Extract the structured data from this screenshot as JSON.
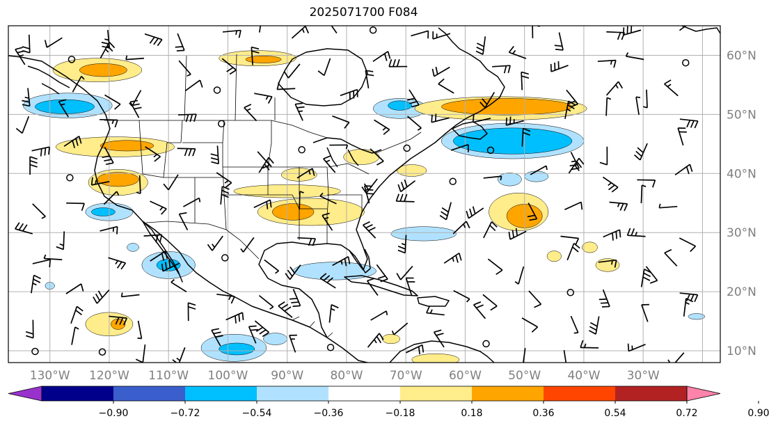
{
  "title": "2025071700 F084",
  "map": {
    "lon_range": [
      -137,
      -17
    ],
    "lat_range": [
      8,
      65
    ],
    "lat_labels": [
      {
        "lat": 60,
        "text": "60°N"
      },
      {
        "lat": 50,
        "text": "50°N"
      },
      {
        "lat": 40,
        "text": "40°N"
      },
      {
        "lat": 30,
        "text": "30°N"
      },
      {
        "lat": 20,
        "text": "20°N"
      },
      {
        "lat": 10,
        "text": "10°N"
      }
    ],
    "lon_labels": [
      {
        "lon": -130,
        "text": "130°W"
      },
      {
        "lon": -120,
        "text": "120°W"
      },
      {
        "lon": -110,
        "text": "110°W"
      },
      {
        "lon": -100,
        "text": "100°W"
      },
      {
        "lon": -90,
        "text": "90°W"
      },
      {
        "lon": -80,
        "text": "80°W"
      },
      {
        "lon": -70,
        "text": "70°W"
      },
      {
        "lon": -60,
        "text": "60°W"
      },
      {
        "lon": -50,
        "text": "50°W"
      },
      {
        "lon": -40,
        "text": "40°W"
      },
      {
        "lon": -30,
        "text": "30°W"
      }
    ],
    "grid_lons": [
      -130,
      -120,
      -110,
      -100,
      -90,
      -80,
      -70,
      -60,
      -50,
      -40,
      -30,
      -20
    ],
    "grid_lats": [
      10,
      20,
      30,
      40,
      50,
      60
    ]
  },
  "colorbar": {
    "colors": [
      "#9932cc",
      "#00008b",
      "#3a5fcd",
      "#00bfff",
      "#b0e2ff",
      "#ffffff",
      "#ffec8b",
      "#ffa500",
      "#ff4500",
      "#b22222",
      "#ff83aa"
    ],
    "ticks": [
      "−0.90",
      "−0.72",
      "−0.54",
      "−0.36",
      "−0.18",
      "0.18",
      "0.36",
      "0.54",
      "0.72",
      "0.90"
    ]
  },
  "features": {
    "ocean_patches": [
      {
        "level": "pos1",
        "color": "#ffec8b",
        "lon": -122,
        "lat": 57.5,
        "rx": 7.5,
        "ry": 2.0
      },
      {
        "level": "pos2",
        "color": "#ffa500",
        "lon": -121,
        "lat": 57.5,
        "rx": 4.0,
        "ry": 1.1
      },
      {
        "level": "pos1",
        "color": "#ffec8b",
        "lon": -95,
        "lat": 59.5,
        "rx": 6.5,
        "ry": 1.3
      },
      {
        "level": "pos2",
        "color": "#ffa500",
        "lon": -94,
        "lat": 59.3,
        "rx": 3.0,
        "ry": 0.6
      },
      {
        "level": "neg1",
        "color": "#b0e2ff",
        "lon": -127,
        "lat": 51.5,
        "rx": 7.5,
        "ry": 2.1
      },
      {
        "level": "neg2",
        "color": "#00bfff",
        "lon": -127.5,
        "lat": 51.3,
        "rx": 5.0,
        "ry": 1.2
      },
      {
        "level": "pos1",
        "color": "#ffec8b",
        "lon": -119,
        "lat": 44.5,
        "rx": 10.0,
        "ry": 1.7
      },
      {
        "level": "pos2",
        "color": "#ffa500",
        "lon": -117,
        "lat": 44.7,
        "rx": 4.5,
        "ry": 0.9
      },
      {
        "level": "pos1",
        "color": "#ffec8b",
        "lon": -118.5,
        "lat": 38.5,
        "rx": 5.0,
        "ry": 2.2
      },
      {
        "level": "pos2",
        "color": "#ffa500",
        "lon": -118.5,
        "lat": 39.0,
        "rx": 3.5,
        "ry": 1.2
      },
      {
        "level": "neg1",
        "color": "#b0e2ff",
        "lon": -120,
        "lat": 33.5,
        "rx": 4.0,
        "ry": 1.5
      },
      {
        "level": "neg2",
        "color": "#00bfff",
        "lon": -121,
        "lat": 33.5,
        "rx": 2.0,
        "ry": 0.7
      },
      {
        "level": "neg1",
        "color": "#b0e2ff",
        "lon": -110,
        "lat": 24.5,
        "rx": 4.5,
        "ry": 2.3
      },
      {
        "level": "neg2",
        "color": "#00bfff",
        "lon": -110,
        "lat": 24.5,
        "rx": 2.0,
        "ry": 1.0
      },
      {
        "level": "pos1",
        "color": "#ffec8b",
        "lon": -90,
        "lat": 37.0,
        "rx": 9.0,
        "ry": 1.1
      },
      {
        "level": "pos1",
        "color": "#ffec8b",
        "lon": -86,
        "lat": 33.5,
        "rx": 9.0,
        "ry": 2.3
      },
      {
        "level": "pos2",
        "color": "#ffa500",
        "lon": -89,
        "lat": 33.5,
        "rx": 3.5,
        "ry": 1.4
      },
      {
        "level": "pos1",
        "color": "#ffec8b",
        "lon": -88,
        "lat": 39.8,
        "rx": 3.0,
        "ry": 1.1
      },
      {
        "level": "pos1",
        "color": "#ffec8b",
        "lon": -77.5,
        "lat": 42.8,
        "rx": 3.0,
        "ry": 1.3
      },
      {
        "level": "pos1",
        "color": "#ffec8b",
        "lon": -69,
        "lat": 40.5,
        "rx": 2.5,
        "ry": 1.0
      },
      {
        "level": "neg1",
        "color": "#b0e2ff",
        "lon": -82,
        "lat": 23.5,
        "rx": 7.0,
        "ry": 1.5
      },
      {
        "level": "neg1",
        "color": "#b0e2ff",
        "lon": -67,
        "lat": 29.8,
        "rx": 5.5,
        "ry": 1.2
      },
      {
        "level": "neg1",
        "color": "#b0e2ff",
        "lon": -71,
        "lat": 51.0,
        "rx": 4.5,
        "ry": 1.7
      },
      {
        "level": "neg2",
        "color": "#00bfff",
        "lon": -71,
        "lat": 51.5,
        "rx": 2.0,
        "ry": 0.8
      },
      {
        "level": "pos1",
        "color": "#ffec8b",
        "lon": -54,
        "lat": 51.0,
        "rx": 14.5,
        "ry": 2.0
      },
      {
        "level": "pos2",
        "color": "#ffa500",
        "lon": -53,
        "lat": 51.3,
        "rx": 11.0,
        "ry": 1.4
      },
      {
        "level": "neg1",
        "color": "#b0e2ff",
        "lon": -52,
        "lat": 45.5,
        "rx": 12.0,
        "ry": 3.0
      },
      {
        "level": "neg2",
        "color": "#00bfff",
        "lon": -52,
        "lat": 45.5,
        "rx": 10.0,
        "ry": 2.2
      },
      {
        "level": "pos1",
        "color": "#ffec8b",
        "lon": -51,
        "lat": 33.5,
        "rx": 5.0,
        "ry": 3.2
      },
      {
        "level": "pos2",
        "color": "#ffa500",
        "lon": -50,
        "lat": 32.8,
        "rx": 3.0,
        "ry": 2.0
      },
      {
        "level": "neg1",
        "color": "#b0e2ff",
        "lon": -52.5,
        "lat": 39.0,
        "rx": 2.0,
        "ry": 1.1
      },
      {
        "level": "pos1",
        "color": "#ffec8b",
        "lon": -45,
        "lat": 26.0,
        "rx": 1.2,
        "ry": 0.9
      },
      {
        "level": "pos1",
        "color": "#ffec8b",
        "lon": -39,
        "lat": 27.5,
        "rx": 1.3,
        "ry": 0.9
      },
      {
        "level": "pos1",
        "color": "#ffec8b",
        "lon": -36,
        "lat": 24.5,
        "rx": 2.0,
        "ry": 1.1
      },
      {
        "level": "pos1",
        "color": "#ffec8b",
        "lon": -120,
        "lat": 14.5,
        "rx": 4.0,
        "ry": 2.0
      },
      {
        "level": "pos2",
        "color": "#ffa500",
        "lon": -118.5,
        "lat": 14.5,
        "rx": 1.2,
        "ry": 0.9
      },
      {
        "level": "neg1",
        "color": "#b0e2ff",
        "lon": -99,
        "lat": 10.5,
        "rx": 5.5,
        "ry": 2.3
      },
      {
        "level": "neg2",
        "color": "#00bfff",
        "lon": -98.5,
        "lat": 10.3,
        "rx": 3.0,
        "ry": 1.0
      },
      {
        "level": "neg1",
        "color": "#b0e2ff",
        "lon": -92,
        "lat": 12.0,
        "rx": 2.0,
        "ry": 1.0
      },
      {
        "level": "pos1",
        "color": "#ffec8b",
        "lon": -72.5,
        "lat": 12.0,
        "rx": 1.5,
        "ry": 0.8
      },
      {
        "level": "pos1",
        "color": "#ffec8b",
        "lon": -65,
        "lat": 8.5,
        "rx": 4.0,
        "ry": 1.0
      },
      {
        "level": "neg1",
        "color": "#b0e2ff",
        "lon": -48,
        "lat": 39.5,
        "rx": 2.0,
        "ry": 0.9
      },
      {
        "level": "neg1",
        "color": "#b0e2ff",
        "lon": -21,
        "lat": 15.8,
        "rx": 1.4,
        "ry": 0.5
      },
      {
        "level": "neg1",
        "color": "#b0e2ff",
        "lon": -130,
        "lat": 21.0,
        "rx": 0.8,
        "ry": 0.6
      },
      {
        "level": "neg1",
        "color": "#b0e2ff",
        "lon": -116,
        "lat": 27.5,
        "rx": 1.0,
        "ry": 0.7
      }
    ]
  }
}
